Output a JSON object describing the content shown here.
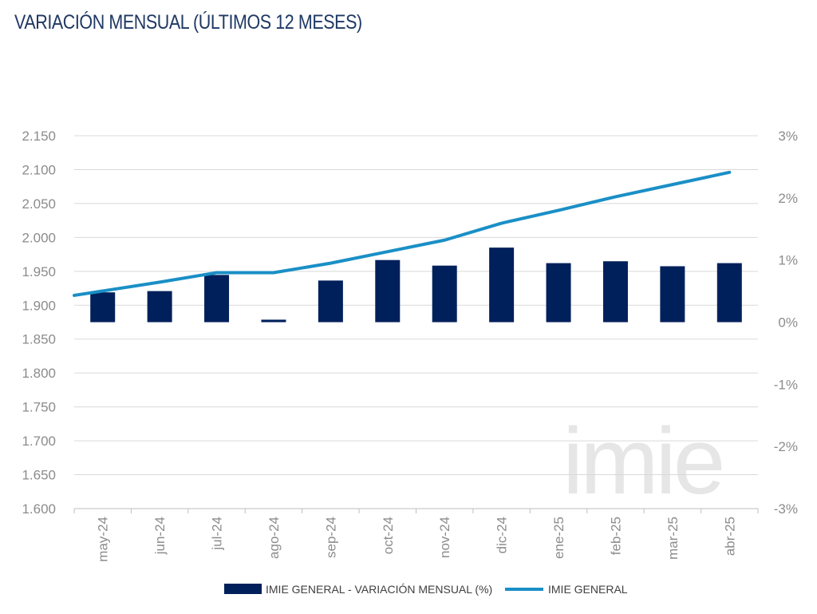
{
  "chart_data": {
    "type": "bar+line",
    "title": "VARIACIÓN MENSUAL (ÚLTIMOS 12 MESES)",
    "categories": [
      "may-24",
      "jun-24",
      "jul-24",
      "ago-24",
      "sep-24",
      "oct-24",
      "nov-24",
      "dic-24",
      "ene-25",
      "feb-25",
      "mar-25",
      "abr-25"
    ],
    "series": [
      {
        "name": "IMIE GENERAL - VARIACIÓN MENSUAL (%)",
        "type": "bar",
        "axis": "right",
        "color": "#00205b",
        "values": [
          0.48,
          0.5,
          0.76,
          0.04,
          0.67,
          1.0,
          0.91,
          1.2,
          0.95,
          0.98,
          0.9,
          0.95
        ]
      },
      {
        "name": "IMIE GENERAL",
        "type": "line",
        "axis": "left",
        "color": "#1a8fc6",
        "values": [
          1921,
          1934,
          1948,
          1948,
          1962,
          1979,
          1996,
          2021,
          2040,
          2060,
          2078,
          2096
        ]
      }
    ],
    "y_left": {
      "min": 1600,
      "max": 2150,
      "step": 50,
      "tick_labels": [
        "1.600",
        "1.650",
        "1.700",
        "1.750",
        "1.800",
        "1.850",
        "1.900",
        "1.950",
        "2.000",
        "2.050",
        "2.100",
        "2.150"
      ]
    },
    "y_right": {
      "min": -3,
      "max": 3,
      "step": 1,
      "tick_labels": [
        "-3%",
        "-2%",
        "-1%",
        "0%",
        "1%",
        "2%",
        "3%"
      ]
    },
    "grid": true,
    "legend_position": "bottom",
    "watermark": "imie"
  }
}
